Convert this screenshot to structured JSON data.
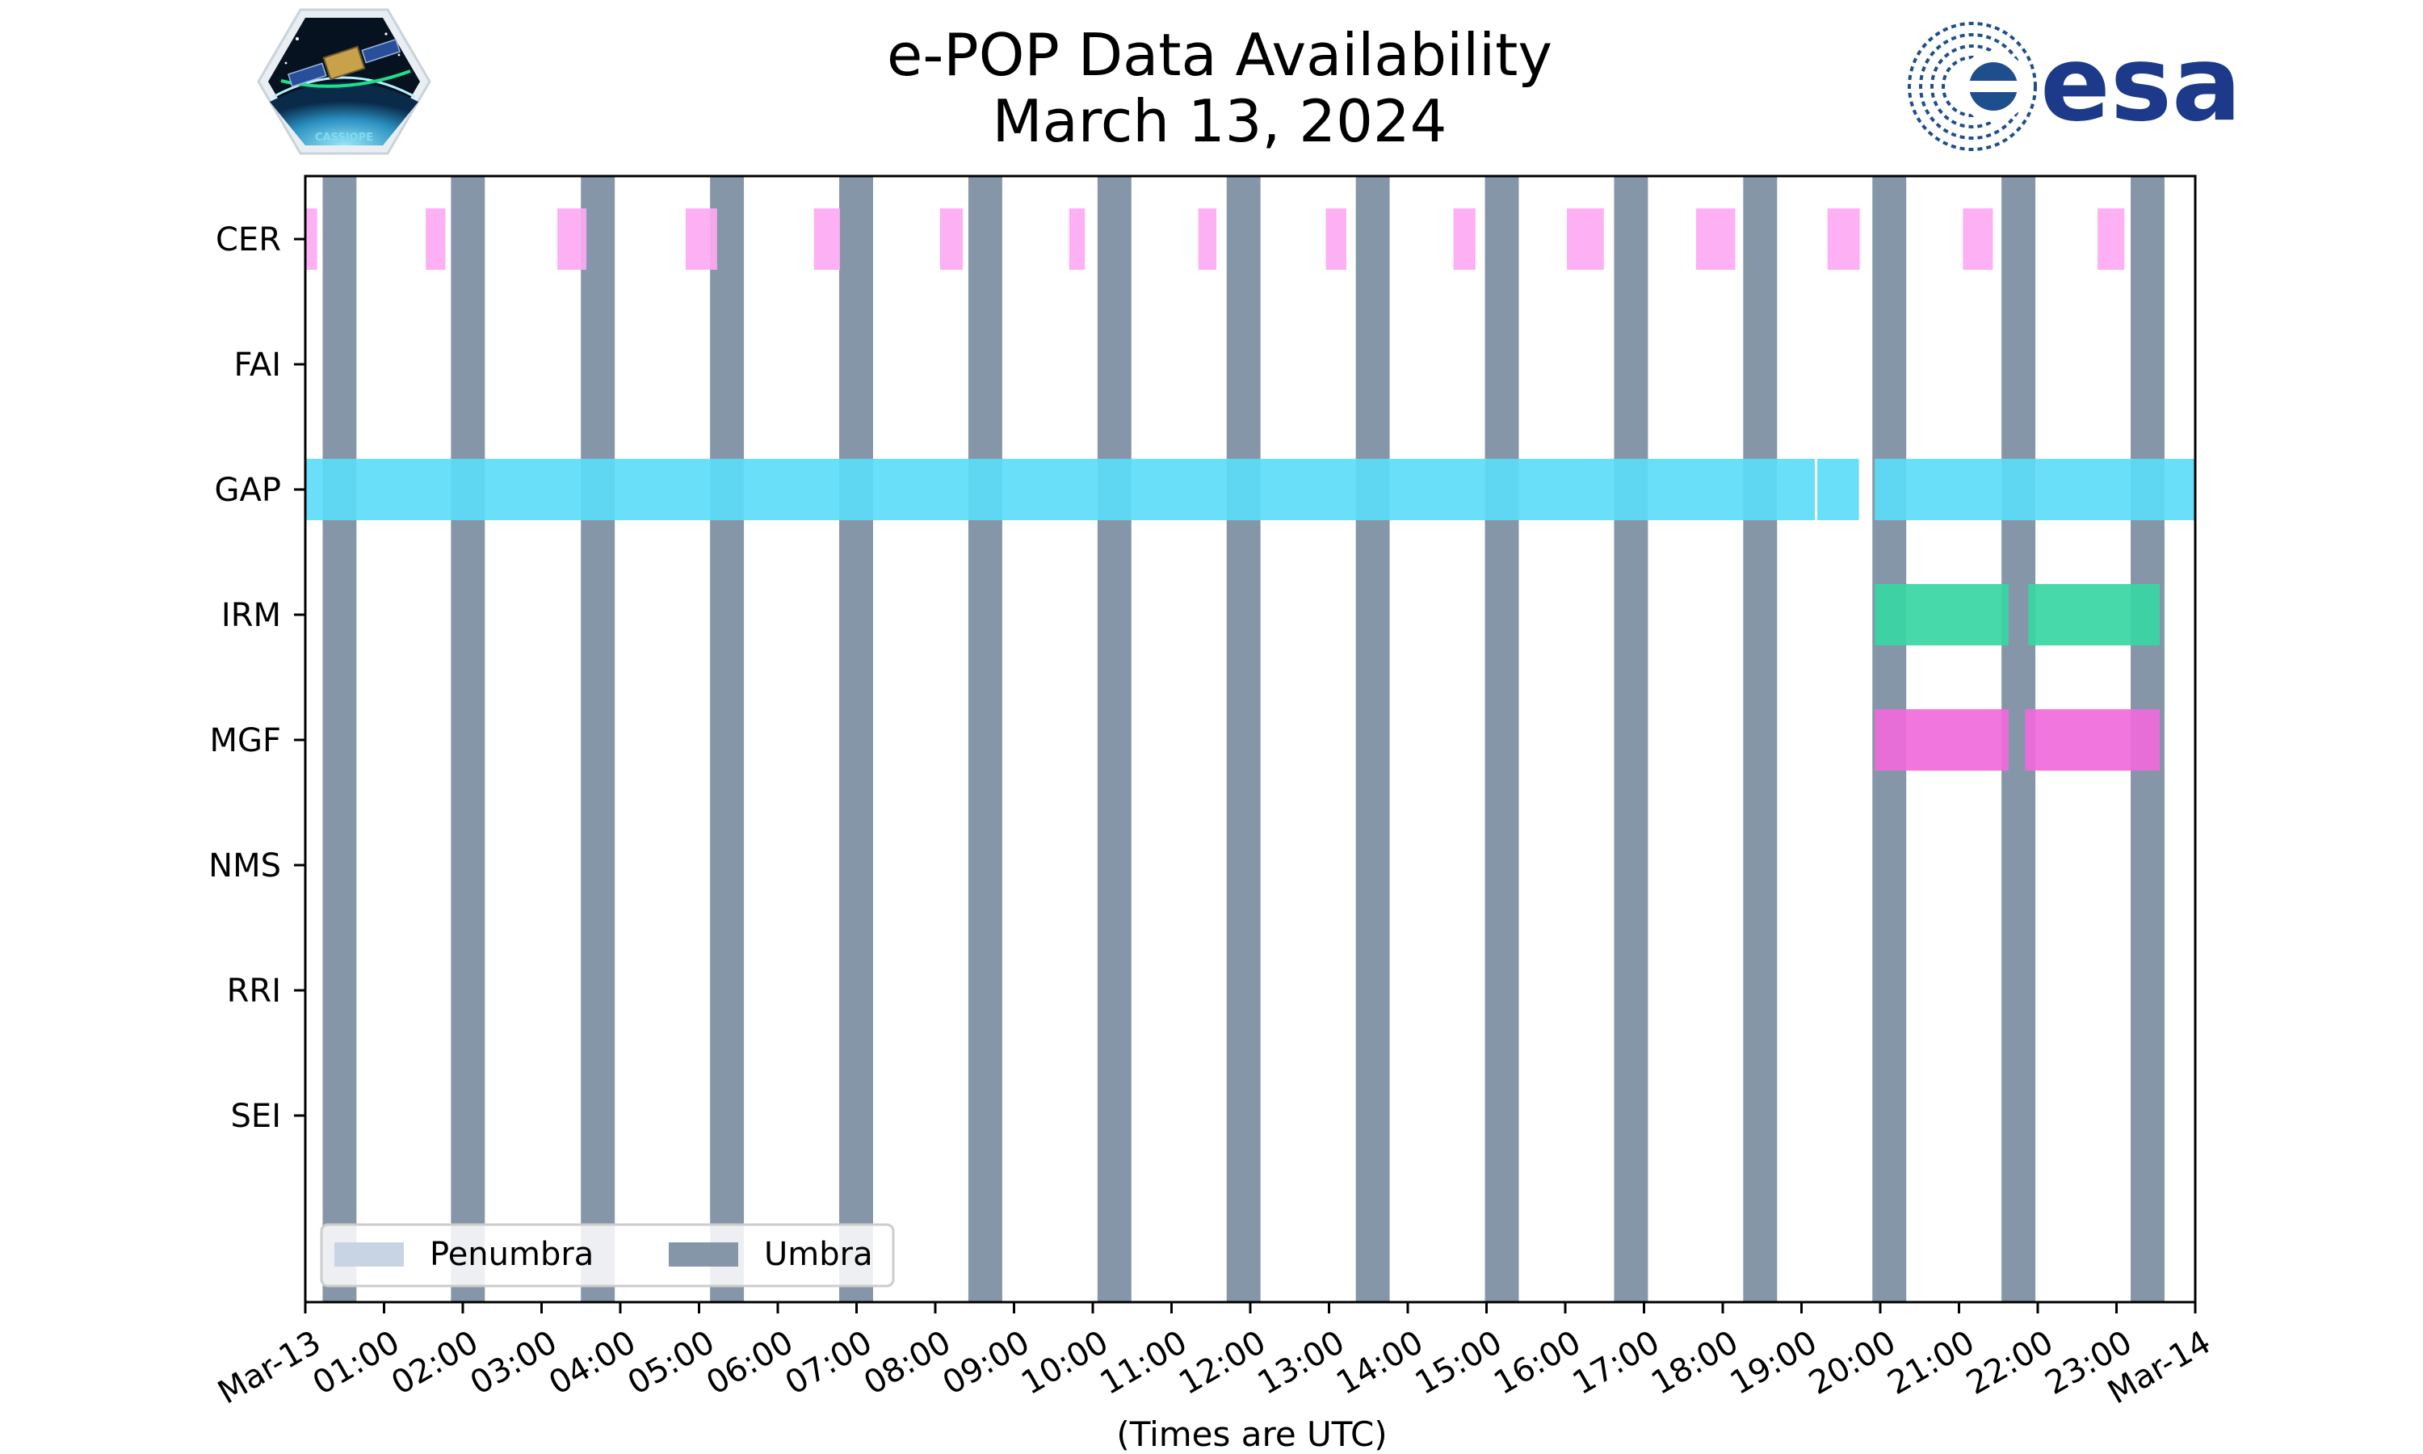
{
  "header": {
    "title_line1": "e-POP Data Availability",
    "title_line2": "March 13, 2024",
    "left_logo": "cassiope-mission-logo",
    "left_logo_text": "CASSIOPE",
    "right_logo": "esa-logo",
    "right_logo_text": "esa"
  },
  "colors": {
    "umbra": "#8596a8",
    "penumbra": "#c8d4e4",
    "CER": "#fda9f2",
    "GAP": "#5ddcf8",
    "IRM": "#38d6a4",
    "MGF": "#f06ada"
  },
  "chart_data": {
    "type": "timeline",
    "title": "e-POP Data Availability\nMarch 13, 2024",
    "xlabel": "(Times are UTC)",
    "ylabel": "",
    "x_unit": "hours UTC",
    "xlim": [
      0,
      24
    ],
    "x_ticks": [
      "Mar-13",
      "01:00",
      "02:00",
      "03:00",
      "04:00",
      "05:00",
      "06:00",
      "07:00",
      "08:00",
      "09:00",
      "10:00",
      "11:00",
      "12:00",
      "13:00",
      "14:00",
      "15:00",
      "16:00",
      "17:00",
      "18:00",
      "19:00",
      "20:00",
      "21:00",
      "22:00",
      "23:00",
      "Mar-14"
    ],
    "instruments": [
      "CER",
      "FAI",
      "GAP",
      "IRM",
      "MGF",
      "NMS",
      "RRI",
      "SEI"
    ],
    "umbra_intervals": [
      [
        0.22,
        0.65
      ],
      [
        1.85,
        2.28
      ],
      [
        3.5,
        3.93
      ],
      [
        5.14,
        5.57
      ],
      [
        6.78,
        7.21
      ],
      [
        8.42,
        8.85
      ],
      [
        10.06,
        10.49
      ],
      [
        11.7,
        12.13
      ],
      [
        13.34,
        13.77
      ],
      [
        14.98,
        15.41
      ],
      [
        16.62,
        17.05
      ],
      [
        18.26,
        18.69
      ],
      [
        19.9,
        20.33
      ],
      [
        21.54,
        21.97
      ],
      [
        23.18,
        23.61
      ]
    ],
    "series": [
      {
        "name": "CER",
        "intervals": [
          [
            0.0,
            0.15
          ],
          [
            1.53,
            1.78
          ],
          [
            3.2,
            3.57
          ],
          [
            4.83,
            5.23
          ],
          [
            6.46,
            6.79
          ],
          [
            8.06,
            8.35
          ],
          [
            9.7,
            9.9
          ],
          [
            11.34,
            11.57
          ],
          [
            12.96,
            13.22
          ],
          [
            14.58,
            14.86
          ],
          [
            16.02,
            16.49
          ],
          [
            17.66,
            18.16
          ],
          [
            19.33,
            19.74
          ],
          [
            21.05,
            21.43
          ],
          [
            22.76,
            23.1
          ]
        ]
      },
      {
        "name": "FAI",
        "intervals": []
      },
      {
        "name": "GAP",
        "intervals": [
          [
            0.0,
            19.17
          ],
          [
            19.2,
            19.73
          ],
          [
            19.93,
            24.0
          ]
        ]
      },
      {
        "name": "IRM",
        "intervals": [
          [
            19.93,
            21.63
          ],
          [
            21.88,
            23.55
          ]
        ]
      },
      {
        "name": "MGF",
        "intervals": [
          [
            19.93,
            21.63
          ],
          [
            21.84,
            23.55
          ]
        ]
      },
      {
        "name": "NMS",
        "intervals": []
      },
      {
        "name": "RRI",
        "intervals": []
      },
      {
        "name": "SEI",
        "intervals": []
      }
    ],
    "legend": {
      "placement": "lower-left",
      "entries": [
        "Penumbra",
        "Umbra"
      ]
    },
    "grid": false
  }
}
